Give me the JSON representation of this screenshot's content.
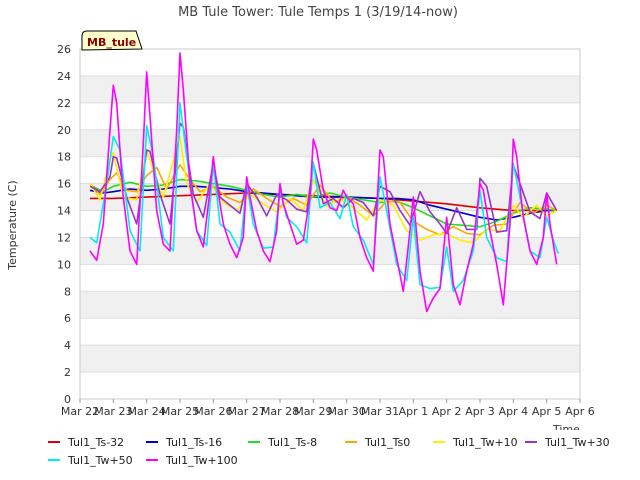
{
  "chart_data": {
    "type": "line",
    "title": "MB Tule Tower: Tule Temps 1 (3/19/14-now)",
    "badge": "MB_tule",
    "ylabel": "Temperature (C)",
    "xlabel": "Time",
    "ylim": [
      0,
      26
    ],
    "yticks": [
      0,
      2,
      4,
      6,
      8,
      10,
      12,
      14,
      16,
      18,
      20,
      22,
      24,
      26
    ],
    "xlim": [
      0,
      15
    ],
    "xticks": [
      {
        "x": 0,
        "label": "Mar 22"
      },
      {
        "x": 1,
        "label": "Mar 23"
      },
      {
        "x": 2,
        "label": "Mar 24"
      },
      {
        "x": 3,
        "label": "Mar 25"
      },
      {
        "x": 4,
        "label": "Mar 26"
      },
      {
        "x": 5,
        "label": "Mar 27"
      },
      {
        "x": 6,
        "label": "Mar 28"
      },
      {
        "x": 7,
        "label": "Mar 29"
      },
      {
        "x": 8,
        "label": "Mar 30"
      },
      {
        "x": 9,
        "label": "Mar 31"
      },
      {
        "x": 10,
        "label": "Apr 1"
      },
      {
        "x": 11,
        "label": "Apr 2"
      },
      {
        "x": 12,
        "label": "Apr 3"
      },
      {
        "x": 13,
        "label": "Apr 4"
      },
      {
        "x": 14,
        "label": "Apr 5"
      },
      {
        "x": 15,
        "label": "Apr 6"
      }
    ],
    "series": [
      {
        "name": "Tul1_Ts-32",
        "color": "#dd0000",
        "x": [
          0.3,
          1,
          2,
          3,
          4,
          5,
          6,
          7,
          8,
          9,
          10,
          11,
          12,
          13,
          14.3
        ],
        "y": [
          14.9,
          14.9,
          15.0,
          15.1,
          15.2,
          15.3,
          15.2,
          15.1,
          15.0,
          14.9,
          14.7,
          14.5,
          14.2,
          14.0,
          14.0
        ]
      },
      {
        "name": "Tul1_Ts-16",
        "color": "#0000cc",
        "x": [
          0.3,
          0.7,
          1,
          1.5,
          2,
          2.5,
          3,
          3.5,
          4,
          4.5,
          5,
          6,
          7,
          8,
          9,
          9.5,
          10,
          10.5,
          11,
          11.5,
          12,
          12.5,
          13,
          13.5,
          14,
          14.3
        ],
        "y": [
          15.5,
          15.3,
          15.4,
          15.6,
          15.5,
          15.6,
          15.8,
          15.8,
          15.7,
          15.6,
          15.4,
          15.2,
          15.0,
          15.0,
          14.9,
          14.9,
          14.8,
          14.4,
          14.1,
          13.8,
          13.5,
          13.3,
          13.5,
          13.8,
          14.0,
          14.0
        ]
      },
      {
        "name": "Tul1_Ts-8",
        "color": "#22dd22",
        "x": [
          0.3,
          0.7,
          1,
          1.5,
          2,
          2.5,
          3,
          3.5,
          4,
          4.5,
          5,
          5.5,
          6,
          6.5,
          7,
          7.5,
          8,
          8.5,
          9,
          9.5,
          10,
          10.5,
          11,
          11.5,
          12,
          12.5,
          13,
          13.5,
          14,
          14.3
        ],
        "y": [
          15.9,
          15.4,
          15.8,
          16.1,
          15.8,
          15.9,
          16.3,
          16.2,
          16.0,
          15.8,
          15.5,
          15.2,
          15.0,
          15.2,
          15.0,
          15.3,
          15.0,
          14.8,
          14.6,
          14.7,
          14.2,
          13.6,
          13.0,
          12.9,
          12.8,
          13.2,
          13.8,
          14.2,
          14.1,
          14.0
        ]
      },
      {
        "name": "Tul1_Ts0",
        "color": "#ffa500",
        "x": [
          0.3,
          0.6,
          0.9,
          1.1,
          1.4,
          1.7,
          2,
          2.3,
          2.6,
          3,
          3.3,
          3.6,
          4,
          4.4,
          4.8,
          5.2,
          5.6,
          6,
          6.4,
          6.8,
          7.2,
          7.6,
          8,
          8.4,
          8.8,
          9.2,
          9.6,
          10,
          10.4,
          10.8,
          11.2,
          11.6,
          12,
          12.4,
          12.8,
          13.2,
          13.6,
          14,
          14.3
        ],
        "y": [
          16.0,
          15.2,
          16.3,
          16.8,
          15.5,
          15.4,
          16.6,
          17.2,
          15.6,
          17.4,
          16.3,
          15.4,
          15.8,
          15.0,
          14.6,
          15.6,
          14.9,
          14.3,
          14.9,
          14.4,
          15.9,
          14.6,
          15.0,
          14.4,
          13.6,
          14.7,
          14.6,
          13.2,
          12.6,
          12.2,
          12.8,
          12.3,
          12.2,
          12.9,
          13.0,
          14.6,
          13.8,
          14.4,
          14.0
        ]
      },
      {
        "name": "Tul1_Tw+10",
        "color": "#ffee00",
        "x": [
          0.3,
          0.6,
          0.9,
          1.0,
          1.3,
          1.7,
          2.0,
          2.2,
          2.5,
          3.0,
          3.2,
          3.5,
          3.9,
          4.3,
          4.7,
          5.1,
          5.5,
          5.9,
          6.3,
          6.7,
          7.0,
          7.4,
          7.8,
          8.2,
          8.6,
          9.0,
          9.4,
          9.8,
          10.2,
          10.6,
          11.0,
          11.4,
          11.8,
          12.2,
          12.6,
          13.0,
          13.3,
          13.7,
          14.0,
          14.3
        ],
        "y": [
          16.0,
          14.8,
          17.8,
          18.3,
          15.0,
          14.8,
          18.5,
          17.0,
          15.0,
          19.5,
          16.0,
          14.6,
          16.0,
          14.6,
          14.0,
          15.2,
          14.5,
          13.9,
          14.9,
          14.0,
          16.3,
          14.3,
          14.9,
          14.2,
          13.3,
          14.8,
          14.4,
          12.5,
          11.8,
          12.2,
          12.3,
          11.8,
          11.6,
          12.6,
          12.5,
          14.4,
          13.5,
          14.4,
          13.6,
          14.0
        ]
      },
      {
        "name": "Tul1_Tw+30",
        "color": "#9933cc",
        "x": [
          0.3,
          0.6,
          0.9,
          1.0,
          1.1,
          1.4,
          1.7,
          2.0,
          2.1,
          2.4,
          2.7,
          3.0,
          3.1,
          3.4,
          3.7,
          4.0,
          4.2,
          4.5,
          4.8,
          5.0,
          5.3,
          5.6,
          5.9,
          6.2,
          6.5,
          6.8,
          7.0,
          7.3,
          7.6,
          7.9,
          8.2,
          8.5,
          8.8,
          9.0,
          9.3,
          9.6,
          9.9,
          10.2,
          10.5,
          10.8,
          11.0,
          11.3,
          11.6,
          11.9,
          12.0,
          12.2,
          12.5,
          12.8,
          13.0,
          13.2,
          13.5,
          13.8,
          14.0,
          14.3
        ],
        "y": [
          15.8,
          15.4,
          16.5,
          18.0,
          17.9,
          15.0,
          13.0,
          18.5,
          18.4,
          15.2,
          13.0,
          20.5,
          20.2,
          15.2,
          13.5,
          17.5,
          15.0,
          14.4,
          13.8,
          16.0,
          15.0,
          13.6,
          15.2,
          14.8,
          14.1,
          13.9,
          17.5,
          14.5,
          14.9,
          14.2,
          14.9,
          14.6,
          13.6,
          15.8,
          15.4,
          14.0,
          12.9,
          15.4,
          13.9,
          13.0,
          12.3,
          14.2,
          12.6,
          12.6,
          16.4,
          15.8,
          12.4,
          12.5,
          17.4,
          16.0,
          13.9,
          13.4,
          15.3,
          14.0
        ]
      },
      {
        "name": "Tul1_Tw+50",
        "color": "#00eeee",
        "x": [
          0.3,
          0.5,
          0.8,
          1.0,
          1.2,
          1.5,
          1.8,
          2.0,
          2.2,
          2.5,
          2.8,
          3.0,
          3.2,
          3.5,
          3.8,
          4.0,
          4.2,
          4.5,
          4.8,
          5.0,
          5.2,
          5.5,
          5.8,
          6.0,
          6.2,
          6.5,
          6.8,
          7.0,
          7.2,
          7.5,
          7.8,
          8.0,
          8.2,
          8.5,
          8.8,
          9.0,
          9.2,
          9.5,
          9.8,
          10.0,
          10.2,
          10.5,
          10.8,
          11.0,
          11.2,
          11.5,
          11.8,
          12.0,
          12.2,
          12.5,
          12.8,
          13.0,
          13.2,
          13.5,
          13.8,
          14.0,
          14.2,
          14.35
        ],
        "y": [
          12.0,
          11.6,
          16.0,
          19.5,
          18.5,
          12.5,
          11.0,
          20.3,
          18.0,
          12.0,
          11.0,
          22.0,
          18.0,
          12.5,
          11.4,
          17.5,
          13.0,
          12.4,
          11.0,
          16.0,
          13.0,
          11.2,
          11.3,
          15.5,
          13.5,
          12.8,
          11.6,
          17.6,
          14.2,
          14.6,
          13.4,
          15.2,
          12.8,
          11.8,
          10.0,
          16.5,
          14.0,
          10.0,
          8.8,
          13.5,
          8.5,
          8.2,
          8.3,
          11.3,
          8.0,
          8.8,
          11.0,
          15.5,
          12.0,
          10.5,
          10.2,
          17.5,
          15.0,
          11.0,
          10.5,
          13.5,
          11.8,
          10.8
        ]
      },
      {
        "name": "Tul1_Tw+100",
        "color": "#ff00ff",
        "x": [
          0.3,
          0.5,
          0.7,
          0.9,
          1.0,
          1.1,
          1.3,
          1.5,
          1.7,
          1.9,
          2.0,
          2.1,
          2.3,
          2.5,
          2.7,
          2.9,
          3.0,
          3.1,
          3.3,
          3.5,
          3.7,
          3.9,
          4.0,
          4.1,
          4.3,
          4.5,
          4.7,
          4.9,
          5.0,
          5.1,
          5.3,
          5.5,
          5.7,
          5.9,
          6.0,
          6.1,
          6.3,
          6.5,
          6.7,
          6.9,
          7.0,
          7.1,
          7.3,
          7.5,
          7.7,
          7.9,
          8.0,
          8.2,
          8.4,
          8.6,
          8.8,
          9.0,
          9.1,
          9.3,
          9.5,
          9.7,
          9.9,
          10.0,
          10.2,
          10.4,
          10.6,
          10.8,
          11.0,
          11.2,
          11.4,
          11.6,
          11.8,
          12.0,
          12.1,
          12.3,
          12.5,
          12.7,
          12.9,
          13.0,
          13.1,
          13.3,
          13.5,
          13.7,
          13.9,
          14.0,
          14.1,
          14.3
        ],
        "y": [
          11.0,
          10.3,
          13.0,
          20.0,
          23.3,
          22.0,
          15.0,
          11.0,
          10.0,
          19.0,
          24.3,
          21.0,
          14.0,
          11.5,
          11.0,
          20.0,
          25.7,
          23.0,
          16.0,
          12.5,
          11.3,
          15.5,
          18.0,
          16.0,
          13.0,
          11.5,
          10.5,
          12.0,
          16.5,
          15.0,
          12.5,
          11.0,
          10.2,
          12.5,
          16.0,
          14.5,
          13.0,
          11.5,
          11.8,
          15.0,
          19.3,
          18.5,
          15.5,
          14.2,
          14.0,
          15.5,
          15.0,
          14.5,
          12.0,
          10.5,
          9.5,
          18.5,
          18.0,
          13.0,
          10.5,
          8.0,
          12.5,
          15.0,
          9.5,
          6.5,
          7.5,
          8.2,
          13.5,
          8.5,
          7.0,
          9.5,
          11.5,
          16.0,
          15.5,
          12.5,
          10.0,
          7.0,
          13.0,
          19.3,
          18.0,
          13.5,
          11.0,
          10.0,
          12.0,
          15.3,
          13.0,
          10.0
        ]
      }
    ]
  }
}
